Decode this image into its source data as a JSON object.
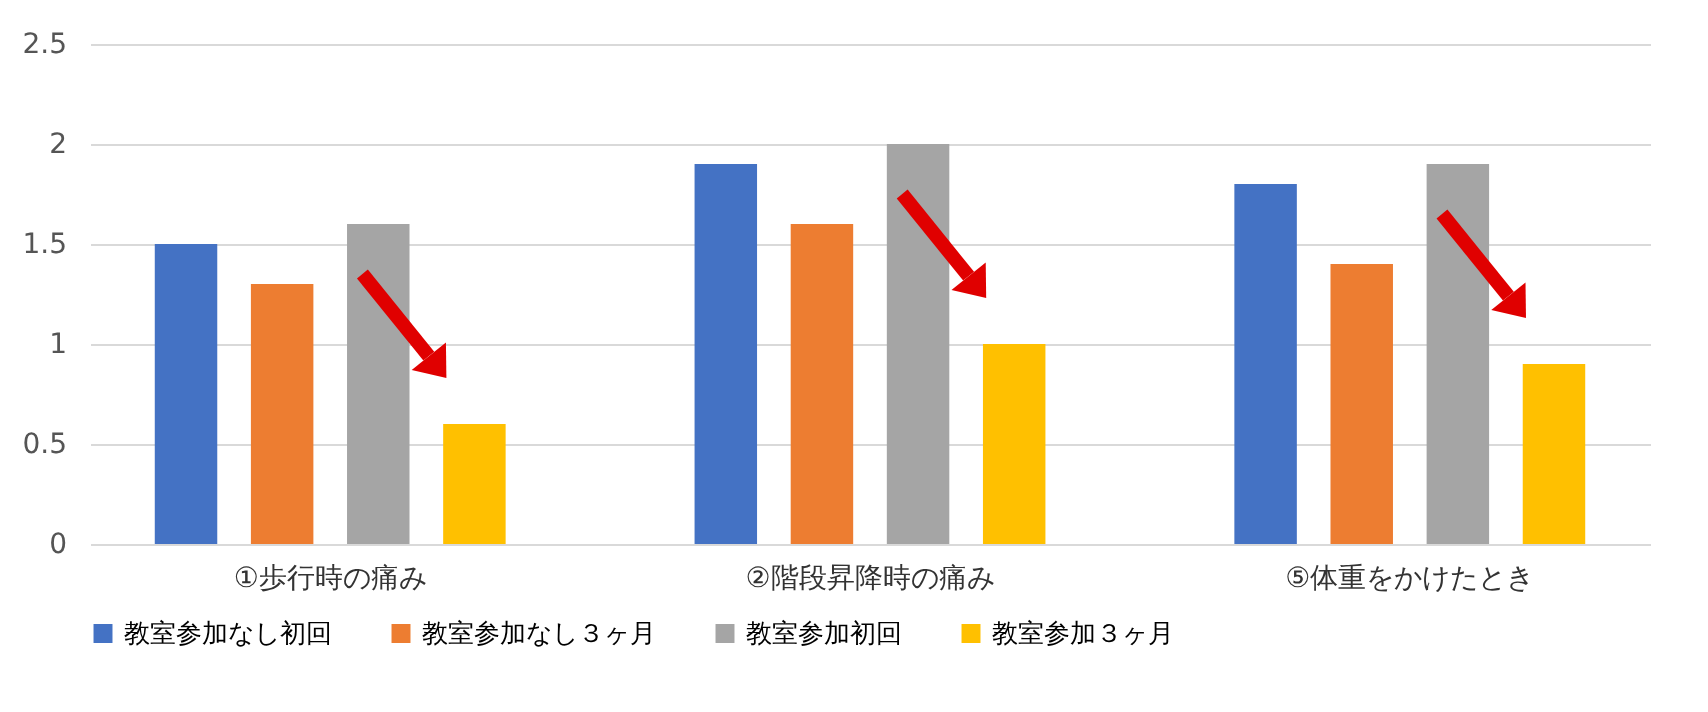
{
  "chart_data": {
    "type": "bar",
    "categories": [
      "①歩行時の痛み",
      "②階段昇降時の痛み",
      "⑤体重をかけたとき"
    ],
    "series": [
      {
        "name": "教室参加なし初回",
        "color": "#4472c4",
        "values": [
          1.5,
          1.9,
          1.8
        ]
      },
      {
        "name": "教室参加なし３ヶ月",
        "color": "#ed7d31",
        "values": [
          1.3,
          1.6,
          1.4
        ]
      },
      {
        "name": "教室参加初回",
        "color": "#a5a5a5",
        "values": [
          1.6,
          2.0,
          1.9
        ]
      },
      {
        "name": "教室参加３ヶ月",
        "color": "#ffc000",
        "values": [
          0.6,
          1.0,
          0.9
        ]
      }
    ],
    "ylim": [
      0,
      2.5
    ],
    "yticks": [
      0,
      0.5,
      1,
      1.5,
      2,
      2.5
    ],
    "grid": "y",
    "legend": "bottom"
  }
}
